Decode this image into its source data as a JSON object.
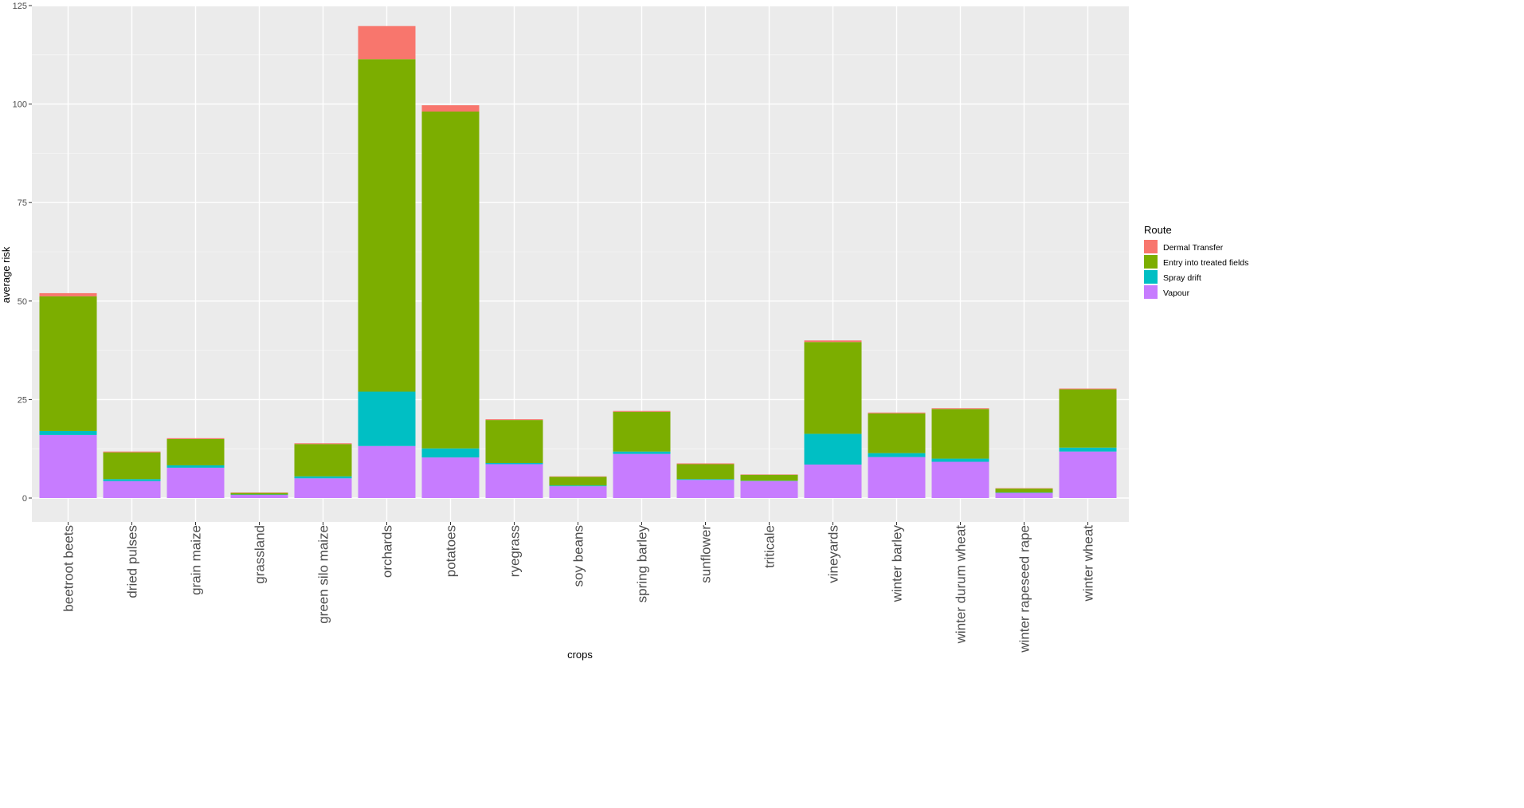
{
  "chart_data": {
    "type": "bar",
    "stacked": true,
    "xlabel": "crops",
    "ylabel": "average risk",
    "ylim": [
      0,
      125
    ],
    "yticks": [
      0,
      25,
      50,
      75,
      100,
      125
    ],
    "grid": true,
    "legend_title": "Route",
    "legend_position": "right",
    "categories": [
      "beetroot beets",
      "dried pulses",
      "grain maize",
      "grassland",
      "green silo maize",
      "orchards",
      "potatoes",
      "ryegrass",
      "soy beans",
      "spring barley",
      "sunflower",
      "triticale",
      "vineyards",
      "winter barley",
      "winter durum wheat",
      "winter rapeseed rape",
      "winter wheat"
    ],
    "series": [
      {
        "name": "Vapour",
        "color": "#C77CFF",
        "values": [
          16.0,
          4.3,
          7.7,
          0.8,
          5.0,
          13.2,
          10.3,
          8.6,
          3.0,
          11.2,
          4.6,
          4.3,
          8.5,
          10.4,
          9.2,
          1.3,
          11.8
        ]
      },
      {
        "name": "Spray drift",
        "color": "#00BFC4",
        "values": [
          1.0,
          0.5,
          0.6,
          0.1,
          0.5,
          13.8,
          2.3,
          0.3,
          0.2,
          0.6,
          0.2,
          0.1,
          7.8,
          1.0,
          0.8,
          0.1,
          1.0
        ]
      },
      {
        "name": "Entry into treated fields",
        "color": "#7CAE00",
        "values": [
          34.2,
          6.8,
          6.7,
          0.4,
          8.2,
          84.4,
          85.5,
          10.9,
          2.2,
          10.1,
          3.8,
          1.5,
          23.3,
          10.1,
          12.6,
          1.0,
          14.8
        ]
      },
      {
        "name": "Dermal Transfer",
        "color": "#F8766D",
        "values": [
          0.8,
          0.2,
          0.2,
          0.1,
          0.2,
          8.4,
          1.6,
          0.2,
          0.1,
          0.2,
          0.2,
          0.1,
          0.4,
          0.2,
          0.2,
          0.1,
          0.2
        ]
      }
    ],
    "legend_order": [
      "Dermal Transfer",
      "Entry into treated fields",
      "Spray drift",
      "Vapour"
    ]
  }
}
